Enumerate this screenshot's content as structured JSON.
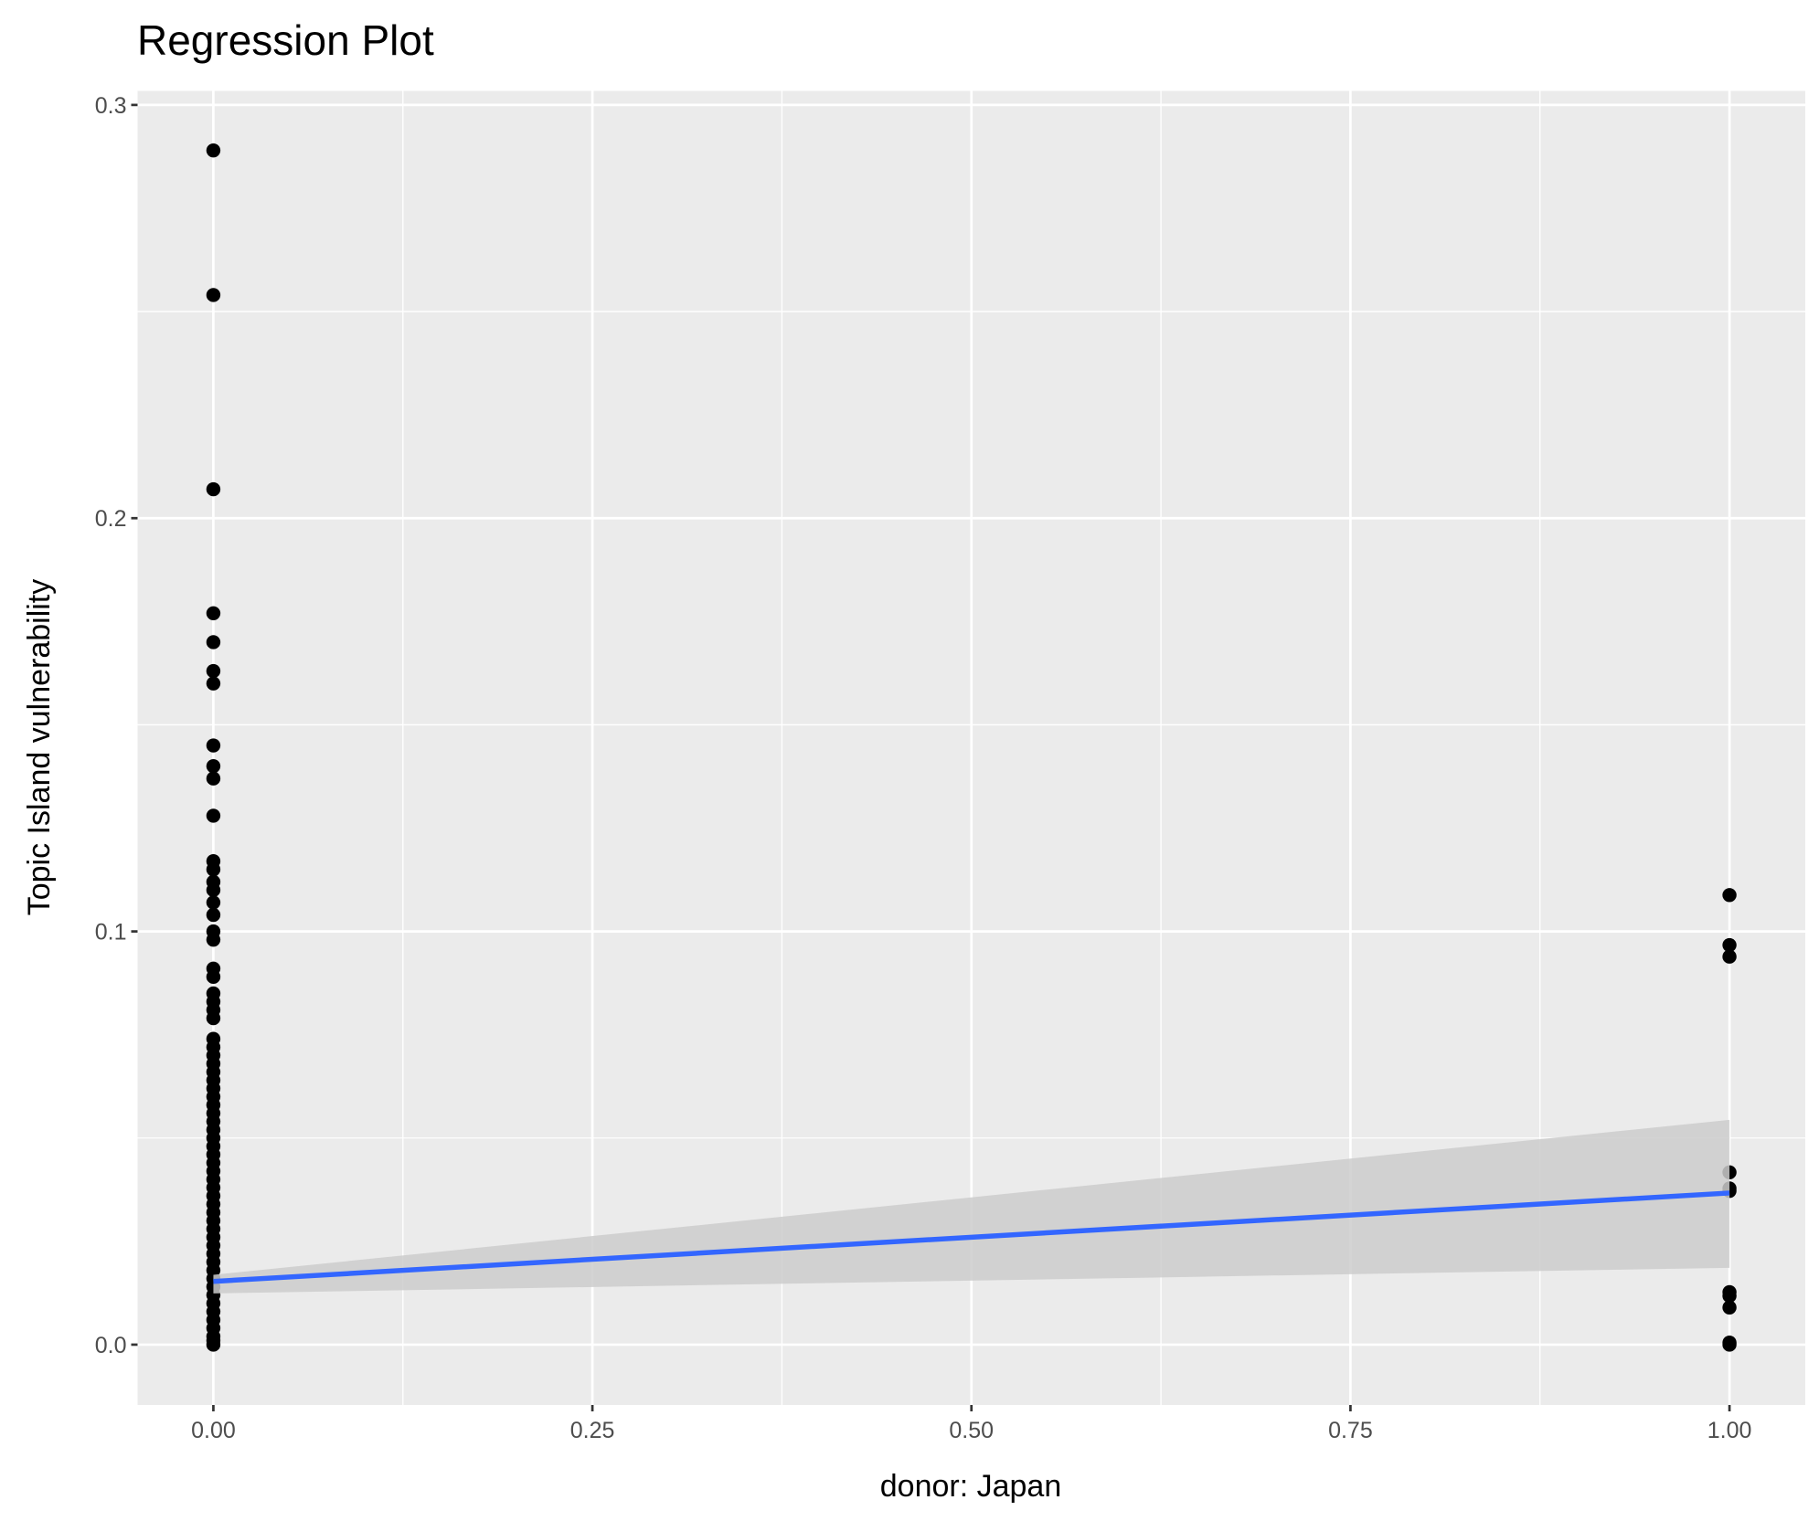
{
  "chart_data": {
    "type": "scatter",
    "title": "Regression Plot",
    "xlabel": "donor: Japan",
    "ylabel": "Topic Island vulnerability",
    "xlim": [
      -0.05,
      1.05
    ],
    "ylim": [
      -0.0146,
      0.3034
    ],
    "xticks": [
      {
        "value": 0,
        "label": "0.00"
      },
      0.25,
      {
        "value": 0.5,
        "label": "0.50"
      },
      0.75,
      {
        "value": 1,
        "label": "1.00"
      }
    ],
    "yticks": [
      {
        "value": 0,
        "label": "0.0"
      },
      0.1,
      0.2,
      0.3
    ],
    "xminor": [
      0.125,
      0.375,
      0.625,
      0.875
    ],
    "yminor": [
      0.05,
      0.15,
      0.25
    ],
    "grid": true,
    "point_color": "#000000",
    "x": [
      0,
      0,
      0,
      0,
      0,
      0,
      0,
      0,
      0,
      0,
      0,
      0,
      0,
      0,
      0,
      0,
      0,
      0,
      0,
      0,
      0,
      0,
      0,
      0,
      0,
      0,
      0,
      0,
      0,
      0,
      0,
      0,
      0,
      0,
      0,
      0,
      0,
      0,
      0,
      0,
      0,
      0,
      0,
      0,
      0,
      0,
      0,
      0,
      0,
      0,
      0,
      0,
      0,
      0,
      0,
      0,
      0,
      0,
      0,
      0,
      0,
      0,
      0,
      0,
      1,
      1,
      1,
      1,
      1,
      1,
      1,
      1,
      1,
      1,
      1
    ],
    "y": [
      0.289,
      0.254,
      0.207,
      0.177,
      0.17,
      0.163,
      0.16,
      0.145,
      0.14,
      0.137,
      0.128,
      0.117,
      0.115,
      0.112,
      0.11,
      0.107,
      0.104,
      0.1,
      0.098,
      0.091,
      0.089,
      0.085,
      0.083,
      0.081,
      0.079,
      0.074,
      0.072,
      0.07,
      0.068,
      0.066,
      0.064,
      0.062,
      0.06,
      0.058,
      0.056,
      0.054,
      0.052,
      0.05,
      0.048,
      0.046,
      0.044,
      0.042,
      0.04,
      0.038,
      0.036,
      0.034,
      0.032,
      0.03,
      0.028,
      0.026,
      0.024,
      0.022,
      0.02,
      0.018,
      0.016,
      0.014,
      0.012,
      0.01,
      0.008,
      0.006,
      0.004,
      0.002,
      0.001,
      0,
      0.1088,
      0.0967,
      0.0939,
      0.0417,
      0.0378,
      0.0372,
      0.0127,
      0.0118,
      0.009,
      0,
      0.0005
    ],
    "fit": {
      "x": [
        0,
        1
      ],
      "y": [
        0.0153,
        0.0367
      ],
      "color": "#3366ff"
    },
    "band": {
      "x": [
        0,
        1
      ],
      "lower": [
        0.0124,
        0.0186
      ],
      "upper": [
        0.0169,
        0.0544
      ],
      "color": "#cccccc"
    }
  }
}
